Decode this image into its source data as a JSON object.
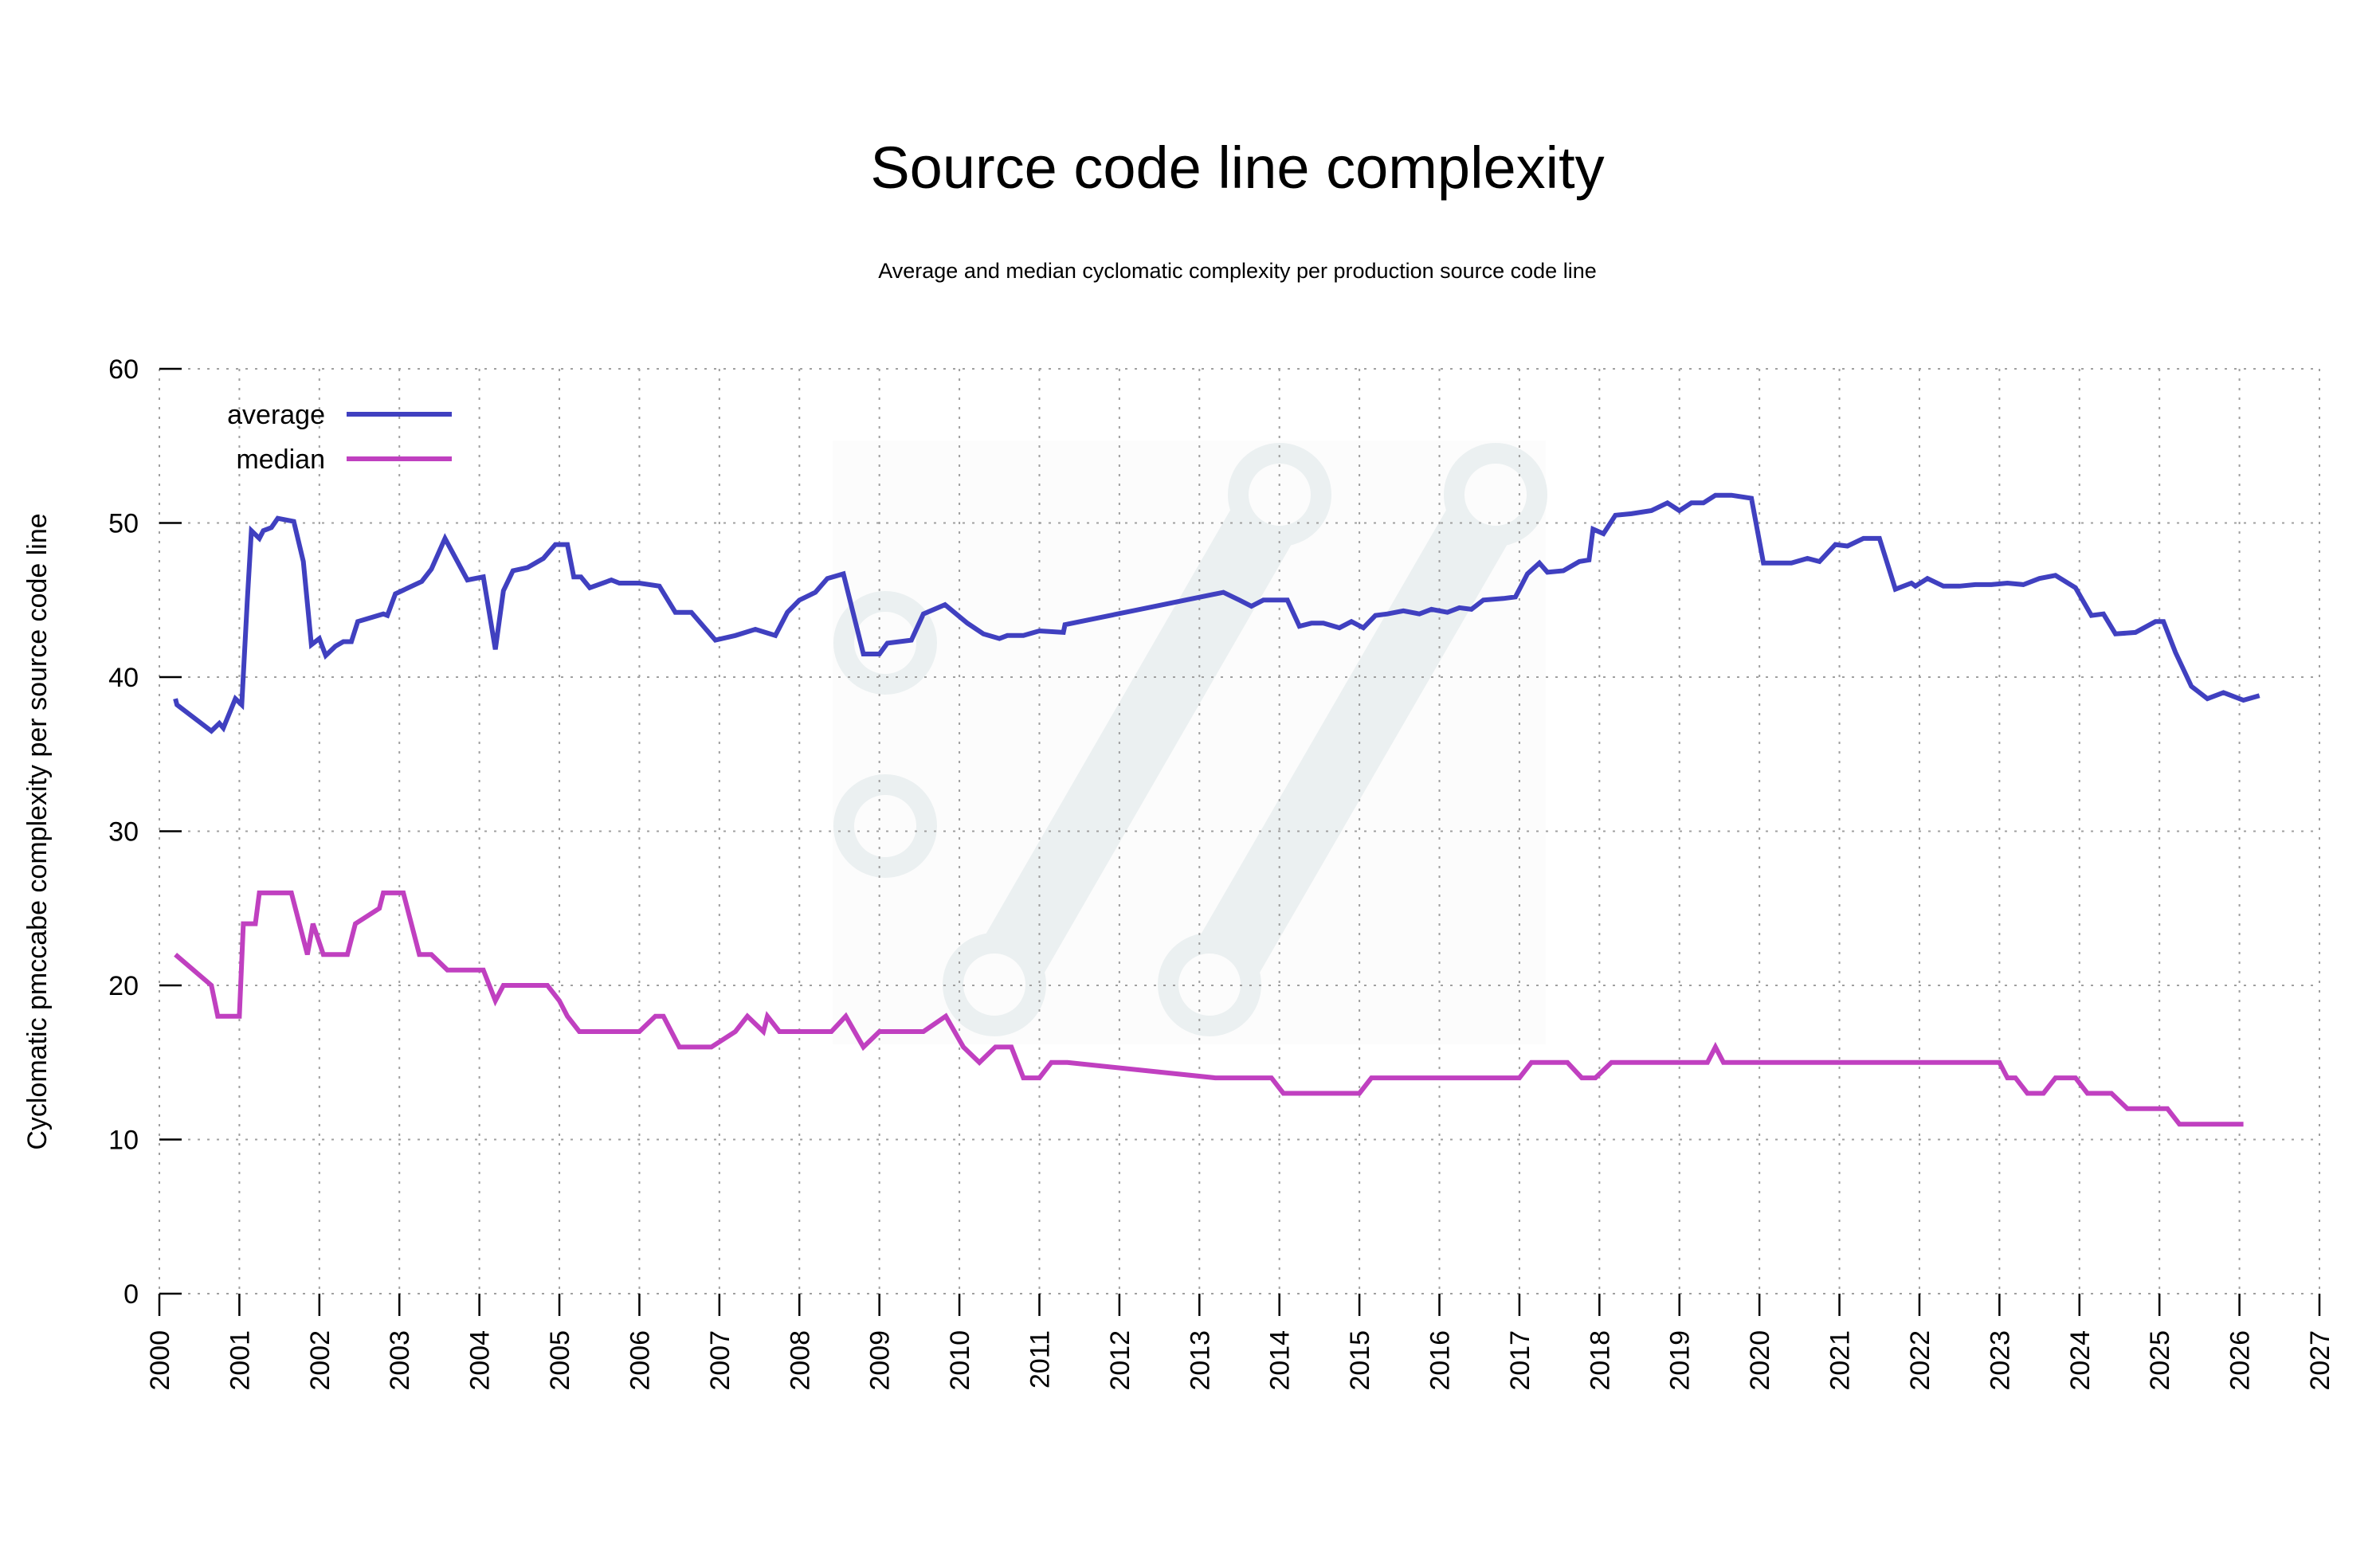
{
  "chart_data": {
    "type": "line",
    "title": "Source code line complexity",
    "subtitle": "Average and median cyclomatic complexity per production source code line",
    "xlabel": "",
    "ylabel": "Cyclomatic pmccabe complexity per source code line",
    "xlim": [
      2000,
      2027
    ],
    "ylim": [
      0,
      60
    ],
    "x_ticks": [
      "2000",
      "2001",
      "2002",
      "2003",
      "2004",
      "2005",
      "2006",
      "2007",
      "2008",
      "2009",
      "2010",
      "2011",
      "2012",
      "2013",
      "2014",
      "2015",
      "2016",
      "2017",
      "2018",
      "2019",
      "2020",
      "2021",
      "2022",
      "2023",
      "2024",
      "2025",
      "2026",
      "2027"
    ],
    "y_ticks": [
      "0",
      "10",
      "20",
      "30",
      "40",
      "50",
      "60"
    ],
    "grid": true,
    "legend": {
      "position": "top-left"
    },
    "series": [
      {
        "name": "average",
        "color": "#4040c0",
        "points": [
          [
            2000.2,
            38.6
          ],
          [
            2000.22,
            38.2
          ],
          [
            2000.65,
            36.5
          ],
          [
            2000.75,
            37.0
          ],
          [
            2000.8,
            36.7
          ],
          [
            2000.95,
            38.6
          ],
          [
            2001.03,
            38.2
          ],
          [
            2001.1,
            45.0
          ],
          [
            2001.15,
            49.5
          ],
          [
            2001.25,
            49.0
          ],
          [
            2001.3,
            49.5
          ],
          [
            2001.4,
            49.7
          ],
          [
            2001.48,
            50.3
          ],
          [
            2001.68,
            50.1
          ],
          [
            2001.8,
            47.5
          ],
          [
            2001.9,
            42.1
          ],
          [
            2002.0,
            42.5
          ],
          [
            2002.08,
            41.4
          ],
          [
            2002.2,
            42.0
          ],
          [
            2002.3,
            42.3
          ],
          [
            2002.4,
            42.3
          ],
          [
            2002.48,
            43.6
          ],
          [
            2002.8,
            44.1
          ],
          [
            2002.85,
            44.0
          ],
          [
            2002.95,
            45.4
          ],
          [
            2003.28,
            46.2
          ],
          [
            2003.4,
            47.0
          ],
          [
            2003.57,
            49.0
          ],
          [
            2003.85,
            46.3
          ],
          [
            2004.05,
            46.5
          ],
          [
            2004.2,
            41.8
          ],
          [
            2004.3,
            45.6
          ],
          [
            2004.42,
            46.9
          ],
          [
            2004.6,
            47.1
          ],
          [
            2004.8,
            47.7
          ],
          [
            2004.95,
            48.6
          ],
          [
            2005.1,
            48.6
          ],
          [
            2005.18,
            46.5
          ],
          [
            2005.27,
            46.5
          ],
          [
            2005.38,
            45.8
          ],
          [
            2005.65,
            46.3
          ],
          [
            2005.75,
            46.1
          ],
          [
            2006.0,
            46.1
          ],
          [
            2006.25,
            45.9
          ],
          [
            2006.45,
            44.2
          ],
          [
            2006.65,
            44.2
          ],
          [
            2006.95,
            42.4
          ],
          [
            2007.2,
            42.7
          ],
          [
            2007.45,
            43.1
          ],
          [
            2007.7,
            42.7
          ],
          [
            2007.85,
            44.2
          ],
          [
            2008.0,
            45.0
          ],
          [
            2008.2,
            45.5
          ],
          [
            2008.35,
            46.4
          ],
          [
            2008.55,
            46.7
          ],
          [
            2008.8,
            41.5
          ],
          [
            2009.0,
            41.5
          ],
          [
            2009.1,
            42.2
          ],
          [
            2009.4,
            42.4
          ],
          [
            2009.55,
            44.1
          ],
          [
            2009.82,
            44.7
          ],
          [
            2010.1,
            43.5
          ],
          [
            2010.3,
            42.8
          ],
          [
            2010.5,
            42.5
          ],
          [
            2010.6,
            42.7
          ],
          [
            2010.8,
            42.7
          ],
          [
            2011.0,
            43.0
          ],
          [
            2011.3,
            42.9
          ],
          [
            2011.32,
            43.4
          ],
          [
            2013.3,
            45.5
          ],
          [
            2013.5,
            45.0
          ],
          [
            2013.65,
            44.6
          ],
          [
            2013.8,
            45.0
          ],
          [
            2014.1,
            45.0
          ],
          [
            2014.25,
            43.3
          ],
          [
            2014.4,
            43.5
          ],
          [
            2014.55,
            43.5
          ],
          [
            2014.75,
            43.2
          ],
          [
            2014.9,
            43.6
          ],
          [
            2015.05,
            43.2
          ],
          [
            2015.2,
            44.0
          ],
          [
            2015.35,
            44.1
          ],
          [
            2015.55,
            44.3
          ],
          [
            2015.75,
            44.1
          ],
          [
            2015.9,
            44.4
          ],
          [
            2016.1,
            44.2
          ],
          [
            2016.25,
            44.5
          ],
          [
            2016.4,
            44.4
          ],
          [
            2016.55,
            45.0
          ],
          [
            2016.8,
            45.1
          ],
          [
            2016.95,
            45.2
          ],
          [
            2017.1,
            46.7
          ],
          [
            2017.25,
            47.4
          ],
          [
            2017.35,
            46.8
          ],
          [
            2017.55,
            46.9
          ],
          [
            2017.75,
            47.5
          ],
          [
            2017.87,
            47.6
          ],
          [
            2017.92,
            49.6
          ],
          [
            2018.05,
            49.3
          ],
          [
            2018.2,
            50.5
          ],
          [
            2018.4,
            50.6
          ],
          [
            2018.65,
            50.8
          ],
          [
            2018.85,
            51.3
          ],
          [
            2019.0,
            50.8
          ],
          [
            2019.15,
            51.3
          ],
          [
            2019.3,
            51.3
          ],
          [
            2019.45,
            51.8
          ],
          [
            2019.65,
            51.8
          ],
          [
            2019.9,
            51.6
          ],
          [
            2020.05,
            47.4
          ],
          [
            2020.4,
            47.4
          ],
          [
            2020.6,
            47.7
          ],
          [
            2020.75,
            47.5
          ],
          [
            2020.95,
            48.6
          ],
          [
            2021.1,
            48.5
          ],
          [
            2021.3,
            49.0
          ],
          [
            2021.5,
            49.0
          ],
          [
            2021.7,
            45.7
          ],
          [
            2021.9,
            46.1
          ],
          [
            2021.95,
            45.9
          ],
          [
            2022.1,
            46.4
          ],
          [
            2022.3,
            45.9
          ],
          [
            2022.5,
            45.9
          ],
          [
            2022.7,
            46.0
          ],
          [
            2022.9,
            46.0
          ],
          [
            2023.1,
            46.1
          ],
          [
            2023.3,
            46.0
          ],
          [
            2023.5,
            46.4
          ],
          [
            2023.7,
            46.6
          ],
          [
            2023.95,
            45.8
          ],
          [
            2024.15,
            44.0
          ],
          [
            2024.3,
            44.1
          ],
          [
            2024.45,
            42.8
          ],
          [
            2024.7,
            42.9
          ],
          [
            2024.95,
            43.6
          ],
          [
            2025.05,
            43.6
          ],
          [
            2025.2,
            41.6
          ],
          [
            2025.4,
            39.4
          ],
          [
            2025.6,
            38.6
          ],
          [
            2025.8,
            39.0
          ],
          [
            2026.05,
            38.5
          ],
          [
            2026.25,
            38.8
          ]
        ]
      },
      {
        "name": "median",
        "color": "#c040c0",
        "points": [
          [
            2000.2,
            22.0
          ],
          [
            2000.65,
            20.0
          ],
          [
            2000.73,
            18.0
          ],
          [
            2001.0,
            18.0
          ],
          [
            2001.05,
            24.0
          ],
          [
            2001.2,
            24.0
          ],
          [
            2001.25,
            26.0
          ],
          [
            2001.65,
            26.0
          ],
          [
            2001.85,
            22.0
          ],
          [
            2001.92,
            24.0
          ],
          [
            2002.05,
            22.0
          ],
          [
            2002.35,
            22.0
          ],
          [
            2002.45,
            24.0
          ],
          [
            2002.75,
            25.0
          ],
          [
            2002.8,
            26.0
          ],
          [
            2003.05,
            26.0
          ],
          [
            2003.25,
            22.0
          ],
          [
            2003.4,
            22.0
          ],
          [
            2003.6,
            21.0
          ],
          [
            2004.05,
            21.0
          ],
          [
            2004.2,
            19.0
          ],
          [
            2004.3,
            20.0
          ],
          [
            2004.85,
            20.0
          ],
          [
            2005.0,
            19.0
          ],
          [
            2005.1,
            18.0
          ],
          [
            2005.25,
            17.0
          ],
          [
            2006.0,
            17.0
          ],
          [
            2006.2,
            18.0
          ],
          [
            2006.3,
            18.0
          ],
          [
            2006.5,
            16.0
          ],
          [
            2006.9,
            16.0
          ],
          [
            2007.2,
            17.0
          ],
          [
            2007.35,
            18.0
          ],
          [
            2007.55,
            17.0
          ],
          [
            2007.6,
            18.0
          ],
          [
            2007.75,
            17.0
          ],
          [
            2008.4,
            17.0
          ],
          [
            2008.58,
            18.0
          ],
          [
            2008.8,
            16.0
          ],
          [
            2009.0,
            17.0
          ],
          [
            2009.55,
            17.0
          ],
          [
            2009.83,
            18.0
          ],
          [
            2010.05,
            16.0
          ],
          [
            2010.25,
            15.0
          ],
          [
            2010.45,
            16.0
          ],
          [
            2010.65,
            16.0
          ],
          [
            2010.8,
            14.0
          ],
          [
            2011.0,
            14.0
          ],
          [
            2011.15,
            15.0
          ],
          [
            2011.35,
            15.0
          ],
          [
            2013.2,
            14.0
          ],
          [
            2013.9,
            14.0
          ],
          [
            2014.05,
            13.0
          ],
          [
            2015.0,
            13.0
          ],
          [
            2015.15,
            14.0
          ],
          [
            2017.0,
            14.0
          ],
          [
            2017.15,
            15.0
          ],
          [
            2017.6,
            15.0
          ],
          [
            2017.78,
            14.0
          ],
          [
            2017.95,
            14.0
          ],
          [
            2018.15,
            15.0
          ],
          [
            2019.35,
            15.0
          ],
          [
            2019.45,
            16.0
          ],
          [
            2019.55,
            15.0
          ],
          [
            2023.0,
            15.0
          ],
          [
            2023.1,
            14.0
          ],
          [
            2023.2,
            14.0
          ],
          [
            2023.35,
            13.0
          ],
          [
            2023.55,
            13.0
          ],
          [
            2023.7,
            14.0
          ],
          [
            2023.95,
            14.0
          ],
          [
            2024.1,
            13.0
          ],
          [
            2024.4,
            13.0
          ],
          [
            2024.6,
            12.0
          ],
          [
            2025.1,
            12.0
          ],
          [
            2025.25,
            11.0
          ],
          [
            2026.05,
            11.0
          ]
        ]
      }
    ]
  },
  "watermark": {
    "icon": "git-branch-logo-icon",
    "color": "#ebf0f1"
  }
}
